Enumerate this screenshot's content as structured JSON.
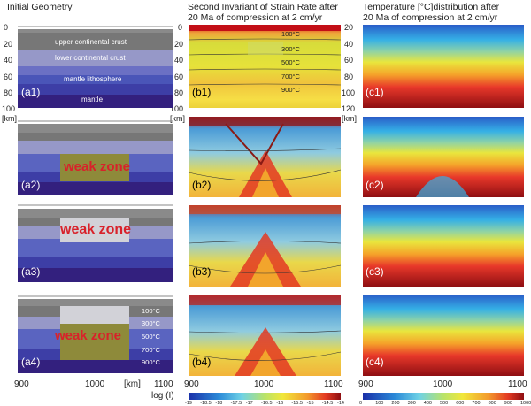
{
  "headers": {
    "col_a": "Initial Geometry",
    "col_b": "Second Invariant of Strain Rate after\n20 Ma of compression at 2 cm/yr",
    "col_c": "Temperature [°C]distribution after\n20 Ma of compression at 2 cm/yr"
  },
  "depth_ticks_a": [
    "0",
    "20",
    "40",
    "60",
    "80",
    "100"
  ],
  "depth_ticks_c": [
    "20",
    "40",
    "60",
    "80",
    "100",
    "120"
  ],
  "depth_unit": "[km]",
  "layers": {
    "upper_crust": "upper continental crust",
    "lower_crust": "lower continental crust",
    "lithosphere": "mantle lithosphere",
    "mantle": "mantle"
  },
  "isotherms": [
    "100°C",
    "300°C",
    "500°C",
    "700°C",
    "900°C"
  ],
  "weak_zone": "weak zone",
  "panels": {
    "a": [
      "(a1)",
      "(a2)",
      "(a3)",
      "(a4)"
    ],
    "b": [
      "(b1)",
      "(b2)",
      "(b3)",
      "(b4)"
    ],
    "c": [
      "(c1)",
      "(c2)",
      "(c3)",
      "(c4)"
    ]
  },
  "x_axis_a": {
    "t900": "900",
    "t1000": "1000",
    "unit": "[km]",
    "t1100": "1100"
  },
  "x_axis_b": {
    "t900": "900",
    "t1000": "1000",
    "t1100": "1100"
  },
  "x_axis_c": {
    "t900": "900",
    "t1000": "1000",
    "t1100": "1100"
  },
  "colorbar_b": {
    "label": "log (I)",
    "ticks": [
      "-19",
      "-18.5",
      "-18",
      "-17.5",
      "-17",
      "-16.5",
      "-16",
      "-15.5",
      "-15",
      "-14.5",
      "-14"
    ]
  },
  "colorbar_c": {
    "ticks": [
      "0",
      "100",
      "200",
      "300",
      "400",
      "500",
      "600",
      "700",
      "800",
      "900",
      "1000"
    ]
  }
}
